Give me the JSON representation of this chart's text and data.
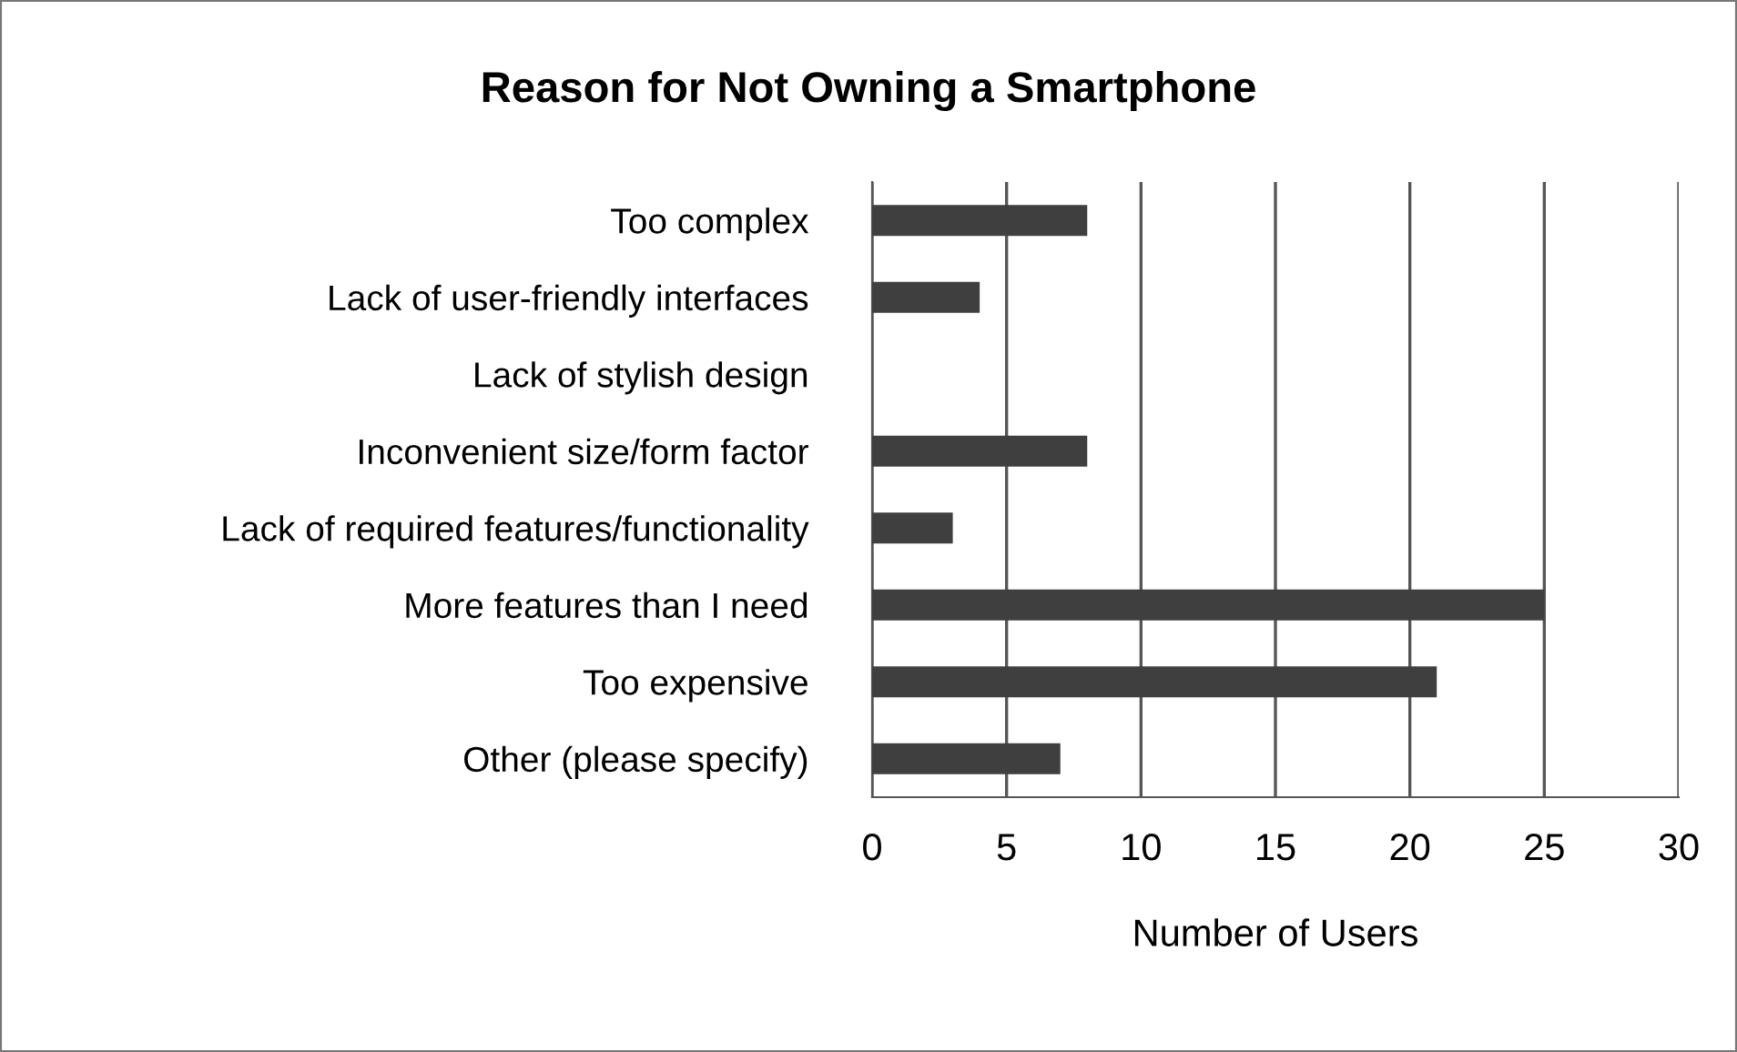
{
  "chart_data": {
    "type": "bar",
    "orientation": "horizontal",
    "title": "Reason for Not Owning a Smartphone",
    "xlabel": "Number of Users",
    "categories": [
      "Too complex",
      "Lack of user-friendly interfaces",
      "Lack of stylish design",
      "Inconvenient size/form factor",
      "Lack of required features/functionality",
      "More features than I need",
      "Too expensive",
      "Other (please specify)"
    ],
    "values": [
      8,
      4,
      0,
      8,
      3,
      25,
      21,
      7
    ],
    "color": "#3f3f3f",
    "xlim": [
      0,
      30
    ],
    "xticks": [
      0,
      5,
      10,
      15,
      20,
      25,
      30
    ],
    "grid": "x",
    "legend": false
  }
}
